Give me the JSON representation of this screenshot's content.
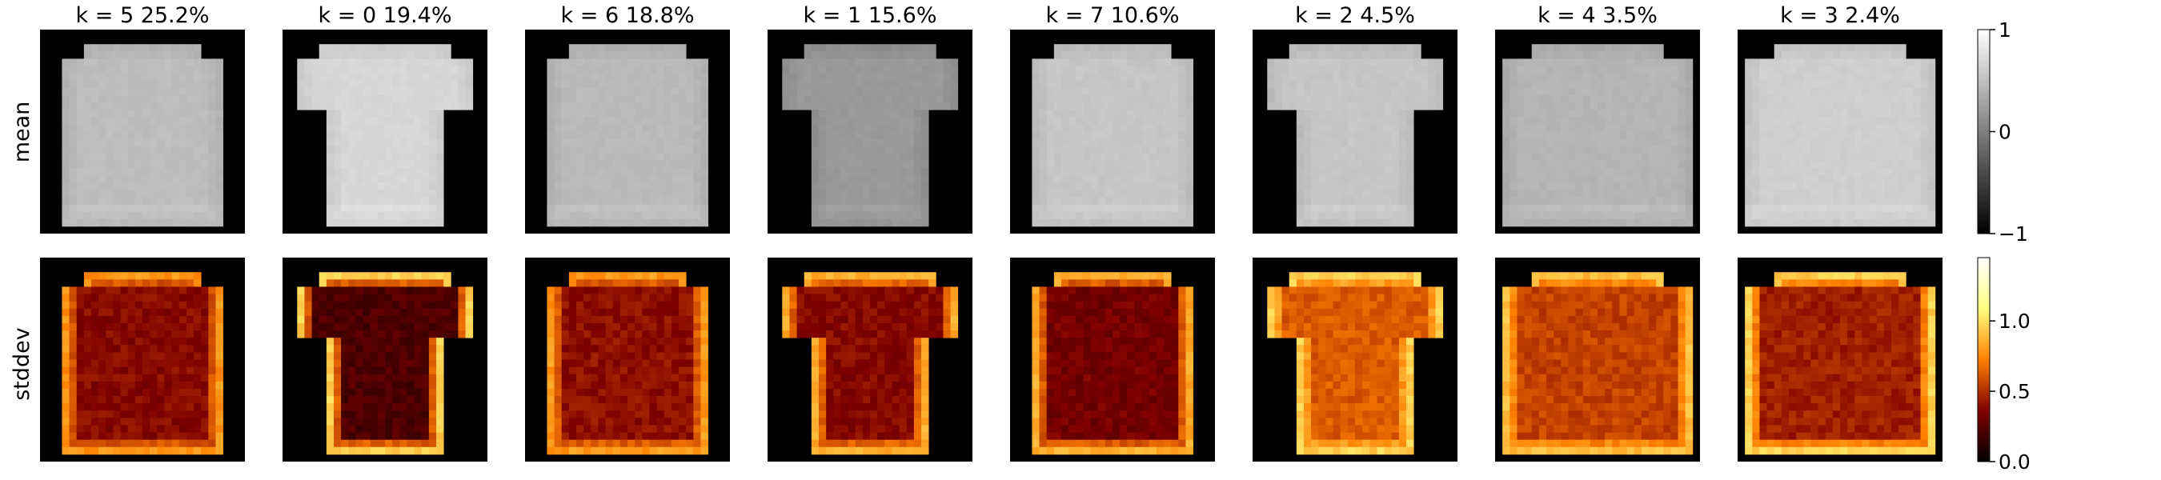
{
  "chart_data": {
    "type": "heatmap",
    "description_rows": [
      "mean",
      "stddev"
    ],
    "rows": [
      {
        "key": "mean",
        "label": "mean",
        "colormap": "gray",
        "range": [
          -1,
          1
        ]
      },
      {
        "key": "stddev",
        "label": "stddev",
        "colormap": "afmhot",
        "range": [
          0,
          1.45
        ]
      }
    ],
    "panels": [
      {
        "k": 5,
        "title": "k = 5  25.2%",
        "shape": "longsleeve",
        "mean_level": 0.48,
        "std_edge": 0.78,
        "std_body": 0.38
      },
      {
        "k": 0,
        "title": "k = 0  19.4%",
        "shape": "tshirt",
        "mean_level": 0.68,
        "std_edge": 0.95,
        "std_body": 0.22
      },
      {
        "k": 6,
        "title": "k = 6  18.8%",
        "shape": "longsleeve",
        "mean_level": 0.46,
        "std_edge": 0.8,
        "std_body": 0.4
      },
      {
        "k": 1,
        "title": "k = 1  15.6%",
        "shape": "tshirt",
        "mean_level": 0.2,
        "std_edge": 0.85,
        "std_body": 0.38
      },
      {
        "k": 7,
        "title": "k = 7  10.6%",
        "shape": "longsleeve",
        "mean_level": 0.55,
        "std_edge": 0.85,
        "std_body": 0.33
      },
      {
        "k": 2,
        "title": "k = 2   4.5%",
        "shape": "tshirt",
        "mean_level": 0.55,
        "std_edge": 0.95,
        "std_body": 0.62
      },
      {
        "k": 4,
        "title": "k = 4   3.5%",
        "shape": "wide",
        "mean_level": 0.42,
        "std_edge": 0.9,
        "std_body": 0.55
      },
      {
        "k": 3,
        "title": "k = 3   2.4%",
        "shape": "wide",
        "mean_level": 0.62,
        "std_edge": 0.95,
        "std_body": 0.45
      }
    ],
    "colorbars": [
      {
        "row": "mean",
        "ticks": [
          {
            "value": 1,
            "label": "1"
          },
          {
            "value": 0,
            "label": "0"
          },
          {
            "value": -1,
            "label": "−1"
          }
        ]
      },
      {
        "row": "stddev",
        "ticks": [
          {
            "value": 1.0,
            "label": "1.0"
          },
          {
            "value": 0.5,
            "label": "0.5"
          },
          {
            "value": 0.0,
            "label": "0.0"
          }
        ]
      }
    ],
    "grid": false
  }
}
